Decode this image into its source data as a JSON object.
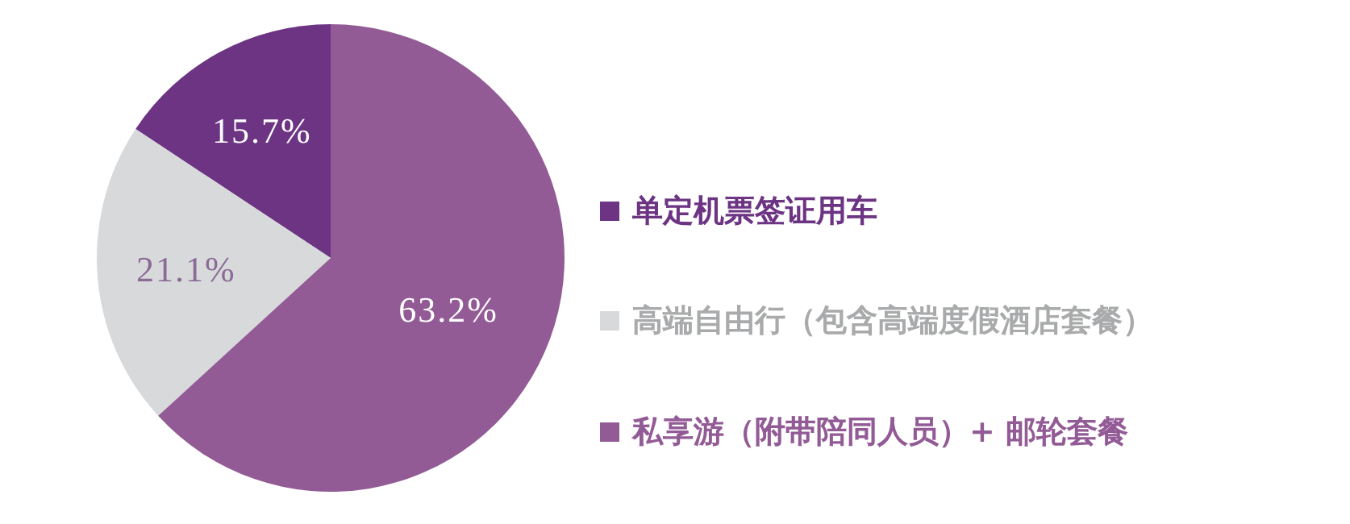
{
  "chart_data": {
    "type": "pie",
    "categories": [
      "单定机票签证用车",
      "高端自由行（包含高端度假酒店套餐）",
      "私享游（附带陪同人员）+ 邮轮套餐"
    ],
    "values": [
      15.7,
      21.1,
      63.2
    ],
    "colors": [
      "#6c3483",
      "#d8d9da",
      "#935b96"
    ],
    "value_labels": [
      "15.7%",
      "21.1%",
      "63.2%"
    ],
    "legend": "right"
  }
}
